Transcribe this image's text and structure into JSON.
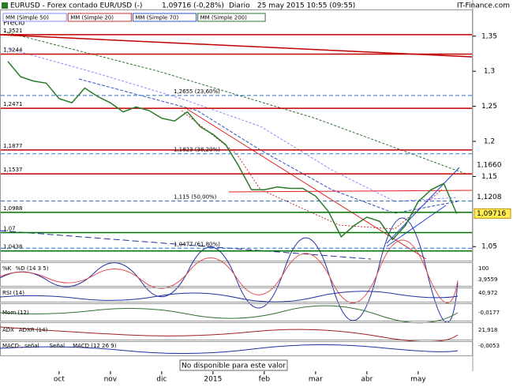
{
  "header": {
    "symbol": "EURUSD - Forex contado EUR/USD (-)",
    "quote": "1,09716 (-0,28%)",
    "period": "Diario",
    "date": "25 may 2015 10:55 (09:55)",
    "brand": "IT-Finance.com"
  },
  "legend": [
    {
      "name": "MM (Simple 50)",
      "color": "#8a8aff"
    },
    {
      "name": "MM (Simple 20)",
      "color": "#c03030"
    },
    {
      "name": "MM (Simple 70)",
      "color": "#3050c0"
    },
    {
      "name": "MM (Simple 200)",
      "color": "#307030"
    }
  ],
  "chart_data": {
    "type": "line",
    "y_label": "Precio",
    "categories": [
      null,
      null,
      null,
      null,
      "oct",
      null,
      null,
      null,
      "nov",
      null,
      null,
      null,
      "dic",
      null,
      null,
      null,
      "2015",
      null,
      null,
      null,
      "feb",
      null,
      null,
      null,
      "mar",
      null,
      null,
      null,
      "abr",
      null,
      null,
      null,
      "may",
      null,
      null,
      null
    ],
    "series": [
      {
        "name": "Precio",
        "color": "#2a7a2a",
        "values": [
          1.314,
          1.292,
          1.286,
          1.283,
          1.261,
          1.255,
          1.276,
          1.264,
          1.255,
          1.242,
          1.249,
          1.244,
          1.233,
          1.229,
          1.242,
          1.221,
          1.21,
          1.195,
          1.165,
          1.131,
          1.131,
          1.135,
          1.133,
          1.133,
          1.122,
          1.1,
          1.064,
          1.08,
          1.092,
          1.086,
          1.06,
          1.08,
          1.114,
          1.131,
          1.14,
          1.097
        ]
      }
    ],
    "ylim": [
      1.03,
      1.388
    ],
    "yticks": [
      {
        "value": 1.35,
        "label": "1,35"
      },
      {
        "value": 1.3,
        "label": "1,3"
      },
      {
        "value": 1.25,
        "label": "1,25"
      },
      {
        "value": 1.2,
        "label": "1,2"
      },
      {
        "value": 1.15,
        "label": "1,15"
      },
      {
        "value": 1.05,
        "label": "1,05"
      }
    ],
    "levels": [
      {
        "value": 1.3521,
        "label": "1,3521",
        "color": "#c00000"
      },
      {
        "value": 1.3244,
        "label": "1,3244",
        "color": "#c00000"
      },
      {
        "value": 1.2655,
        "label": "1,2655 (23,60%)",
        "color": "#3070c0"
      },
      {
        "value": 1.2471,
        "label": "1,2471",
        "color": "#c00000"
      },
      {
        "value": 1.1877,
        "label": "1,1877",
        "color": "#c00000"
      },
      {
        "value": 1.1823,
        "label": "1,1823 (38,20%)",
        "color": "#3070c0"
      },
      {
        "value": 1.1537,
        "label": "1,1537",
        "color": "#c00000"
      },
      {
        "value": 1.115,
        "label": "1,115 (50,00%)",
        "color": "#3070c0"
      },
      {
        "value": 1.0988,
        "label": "1,0988",
        "color": "#007000"
      },
      {
        "value": 1.07,
        "label": "1,07",
        "color": "#007000"
      },
      {
        "value": 1.0477,
        "label": "1,0477 (61,80%)",
        "color": "#3070c0"
      },
      {
        "value": 1.0438,
        "label": "1,0438",
        "color": "#007000"
      }
    ],
    "price_markers": [
      {
        "value": 1.166,
        "label": "1,1660",
        "highlight": false
      },
      {
        "value": 1.1208,
        "label": "1,1208",
        "highlight": false
      },
      {
        "value": 1.09716,
        "label": "1,09716",
        "highlight": true
      }
    ]
  },
  "indicators": [
    {
      "labels": [
        "%K",
        "%D (14 3 5)"
      ],
      "values": [
        "100",
        "3,9559"
      ]
    },
    {
      "labels": [
        "RSI (14)"
      ],
      "values": [
        "40,972"
      ]
    },
    {
      "labels": [
        "Mom (12)"
      ],
      "values": [
        "-0,0177"
      ]
    },
    {
      "labels": [
        "ADX",
        "ADXR (14)"
      ],
      "values": [
        "21,918"
      ]
    },
    {
      "labels": [
        "MACD-, señal",
        "Señal",
        "MACD (12 26 9)"
      ],
      "values": [
        "-0,0053"
      ]
    }
  ],
  "notice": "No disponible para este valor"
}
